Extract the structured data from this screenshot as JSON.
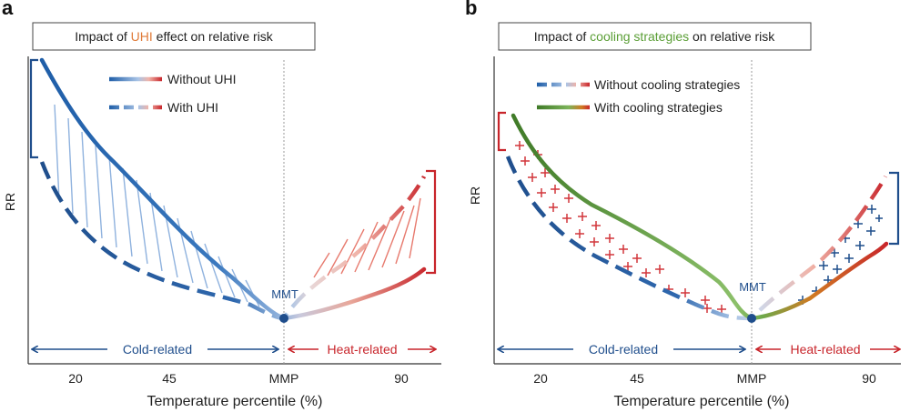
{
  "panel_a": {
    "letter": "a",
    "title_prefix": "Impact of ",
    "title_highlight": "UHI",
    "title_suffix": " effect on relative risk",
    "legend_solid": "Without UHI",
    "legend_dashed": "With UHI",
    "ylabel": "RR",
    "xlabel": "Temperature percentile (%)",
    "ticks": [
      "20",
      "45",
      "MMP",
      "90"
    ],
    "mmt_label": "MMT",
    "cold_label": "Cold-related",
    "heat_label": "Heat-related"
  },
  "panel_b": {
    "letter": "b",
    "title_prefix": "Impact of ",
    "title_highlight": "cooling strategies",
    "title_suffix": " on relative risk",
    "legend_dashed": "Without cooling strategies",
    "legend_solid": "With cooling strategies",
    "ylabel": "RR",
    "xlabel": "Temperature percentile (%)",
    "ticks": [
      "20",
      "45",
      "MMP",
      "90"
    ],
    "mmt_label": "MMT",
    "cold_label": "Cold-related",
    "heat_label": "Heat-related"
  },
  "colors": {
    "cold": "#1f5ea8",
    "cold_light": "#a9c4e6",
    "heat": "#c8252b",
    "heat_light": "#f0b3a8",
    "green": "#4f8a2e",
    "orange": "#d06a1f",
    "uhi_highlight": "#e07b39",
    "cooling_highlight": "#5a9e35"
  }
}
